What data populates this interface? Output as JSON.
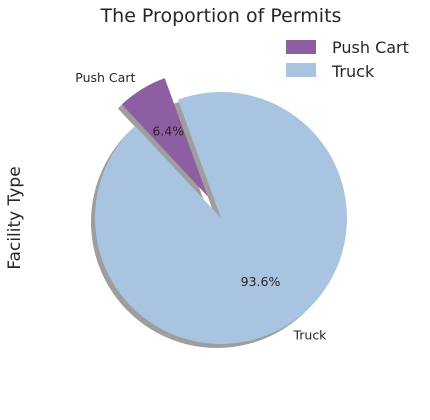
{
  "chart_data": {
    "type": "pie",
    "title": "The Proportion of Permits",
    "ylabel": "Facility Type",
    "categories": [
      "Push Cart",
      "Truck"
    ],
    "values": [
      6.4,
      93.6
    ],
    "percent_labels": [
      "6.4%",
      "93.6%"
    ],
    "colors": [
      "#8e5ea2",
      "#a9c4e0"
    ],
    "explode": [
      0.2,
      0
    ],
    "shadow": true,
    "start_angle": 110,
    "legend": {
      "placement": "top-right",
      "entries": [
        "Push Cart",
        "Truck"
      ]
    }
  }
}
